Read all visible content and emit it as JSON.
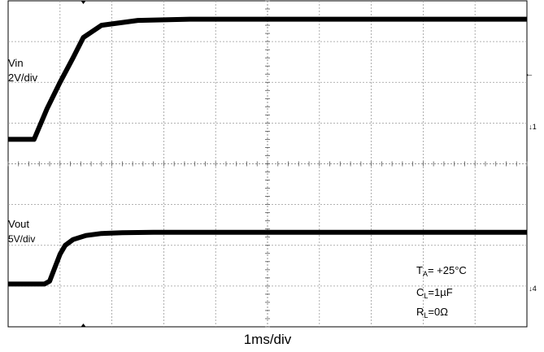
{
  "chart_data": {
    "type": "line",
    "title": "",
    "xlabel": "1ms/div",
    "ylabel": "",
    "grid": true,
    "divisions": {
      "x": 10,
      "y": 8
    },
    "x_unit": "div",
    "x_range_div": [
      0,
      10
    ],
    "channels": [
      {
        "name": "Vin",
        "scale": "2V/div",
        "ground_level_div": 4.6,
        "markers": [
          "←",
          "↓1"
        ],
        "color": "#000000",
        "x_div": [
          0,
          0.5,
          0.75,
          1.0,
          1.25,
          1.45,
          1.8,
          2.5,
          3.5,
          5,
          7,
          10
        ],
        "y_div": [
          4.6,
          4.6,
          5.35,
          6.0,
          6.6,
          7.1,
          7.4,
          7.52,
          7.55,
          7.55,
          7.55,
          7.55
        ]
      },
      {
        "name": "Vout",
        "scale": "5V/div",
        "ground_level_div": 1.05,
        "markers": [
          "↓4"
        ],
        "color": "#000000",
        "x_div": [
          0,
          0.7,
          0.8,
          0.9,
          1.0,
          1.1,
          1.25,
          1.5,
          1.8,
          2.2,
          2.8,
          4,
          10
        ],
        "y_div": [
          1.05,
          1.05,
          1.12,
          1.45,
          1.78,
          2.0,
          2.14,
          2.24,
          2.29,
          2.31,
          2.32,
          2.32,
          2.32
        ]
      }
    ],
    "annotations": [
      {
        "text": "TA= +25°C",
        "main": "T",
        "sub": "A",
        "rest": "= +25°C"
      },
      {
        "text": "CL=1µF",
        "main": "C",
        "sub": "L",
        "rest": "=1µF"
      },
      {
        "text": "RL=0Ω",
        "main": "R",
        "sub": "L",
        "rest": "=0Ω"
      }
    ]
  }
}
